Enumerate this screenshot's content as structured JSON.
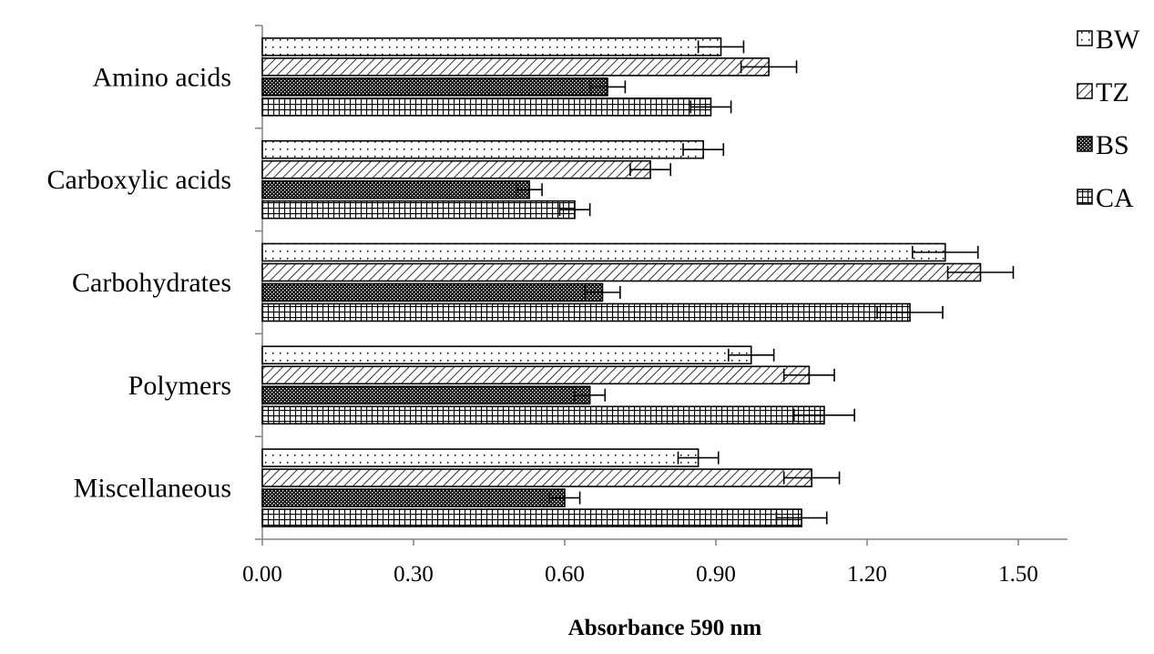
{
  "chart_data": {
    "type": "bar",
    "orientation": "horizontal",
    "categories": [
      "Amino acids",
      "Carboxylic acids",
      "Carbohydrates",
      "Polymers",
      "Miscellaneous"
    ],
    "series": [
      {
        "name": "BW",
        "pattern": "dots",
        "values": [
          0.91,
          0.875,
          1.355,
          0.97,
          0.865
        ],
        "errors": [
          0.045,
          0.04,
          0.065,
          0.045,
          0.04
        ]
      },
      {
        "name": "TZ",
        "pattern": "diagonal-hatch",
        "values": [
          1.005,
          0.77,
          1.425,
          1.085,
          1.09
        ],
        "errors": [
          0.055,
          0.04,
          0.065,
          0.05,
          0.055
        ]
      },
      {
        "name": "BS",
        "pattern": "dense-checker",
        "values": [
          0.685,
          0.53,
          0.675,
          0.65,
          0.6
        ],
        "errors": [
          0.035,
          0.025,
          0.035,
          0.03,
          0.03
        ]
      },
      {
        "name": "CA",
        "pattern": "grid",
        "values": [
          0.89,
          0.62,
          1.285,
          1.115,
          1.07
        ],
        "errors": [
          0.04,
          0.03,
          0.065,
          0.06,
          0.05
        ]
      }
    ],
    "xlabel": "Absorbance  590 nm",
    "ylabel": "",
    "xlim": [
      0,
      1.6
    ],
    "xticks": [
      "0.00",
      "0.30",
      "0.60",
      "0.90",
      "1.20",
      "1.50"
    ],
    "grid": false,
    "legend_position": "top-right",
    "colors": {
      "bar_outline": "#000000",
      "background": "#ffffff"
    }
  }
}
